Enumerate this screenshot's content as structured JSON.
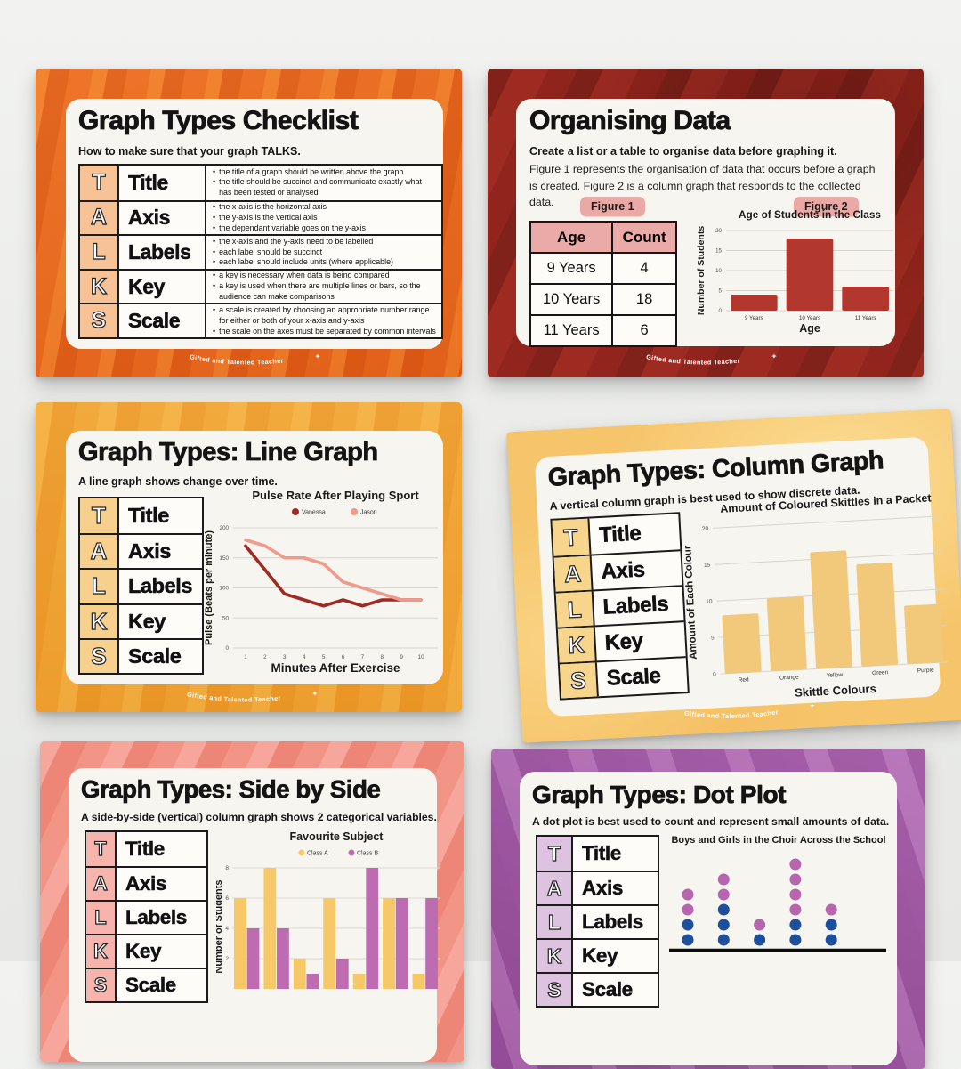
{
  "page": {
    "brand": "Gifted and  Talented Teacher",
    "background": "#eaebe9"
  },
  "talks_rows": [
    {
      "letter": "T",
      "label": "Title"
    },
    {
      "letter": "A",
      "label": "Axis"
    },
    {
      "letter": "L",
      "label": "Labels"
    },
    {
      "letter": "K",
      "label": "Key"
    },
    {
      "letter": "S",
      "label": "Scale"
    }
  ],
  "cards": {
    "checklist": {
      "title": "Graph Types Checklist",
      "subtitle": "How to make sure that your graph TALKS.",
      "bg": "#e8611a",
      "accent": "#f6c296",
      "rows": [
        {
          "letter": "T",
          "label": "Title",
          "bullets": [
            "the title of a graph should be written above the graph",
            "the title should be succinct and communicate exactly what has been tested or analysed"
          ]
        },
        {
          "letter": "A",
          "label": "Axis",
          "bullets": [
            "the x-axis is the horizontal axis",
            "the y-axis is the vertical axis",
            "the dependant variable goes on the y-axis"
          ]
        },
        {
          "letter": "L",
          "label": "Labels",
          "bullets": [
            "the x-axis and the y-axis need to be labelled",
            "each label should be succinct",
            "each label should include units (where applicable)"
          ]
        },
        {
          "letter": "K",
          "label": "Key",
          "bullets": [
            "a key is necessary when data is being compared",
            "a key is used when there are multiple lines or bars, so the audience can make comparisons"
          ]
        },
        {
          "letter": "S",
          "label": "Scale",
          "bullets": [
            "a scale is created by choosing an appropriate number range for either or both of your x-axis and y-axis",
            "the scale on the axes must be separated by common intervals"
          ]
        }
      ]
    },
    "organising": {
      "title": "Organising Data",
      "subtitle": "Create a list or a table to organise data before graphing it.",
      "body": "Figure 1 represents the organisation of data that occurs before a graph is created. Figure 2 is a column graph that responds to the collected data.",
      "figure1_label": "Figure 1",
      "figure2_label": "Figure 2",
      "bg": "#9d2b21",
      "badge_color": "#eaa9a5",
      "table": {
        "headers": [
          "Age",
          "Count"
        ],
        "rows": [
          [
            "9 Years",
            "4"
          ],
          [
            "10 Years",
            "18"
          ],
          [
            "11 Years",
            "6"
          ]
        ]
      }
    },
    "line": {
      "title": "Graph Types: Line Graph",
      "subtitle": "A line graph shows change over time.",
      "bg": "#efa02f",
      "accent": "#f8d08d"
    },
    "column": {
      "title": "Graph Types: Column Graph",
      "subtitle": "A vertical column graph is best used to show discrete data.",
      "bg": "#f6c56b",
      "accent": "#f8d58d"
    },
    "side": {
      "title": "Graph Types: Side by Side",
      "subtitle": "A side-by-side (vertical) column graph shows 2 categorical variables.",
      "bg": "#ef8f82",
      "accent": "#f6b4ac"
    },
    "dot": {
      "title": "Graph Types: Dot Plot",
      "subtitle": "A dot plot is best used to count and represent small amounts of data.",
      "bg": "#a463a7",
      "accent": "#ddc3e0"
    }
  },
  "chart_data": [
    {
      "card": "organising",
      "type": "bar",
      "title": "Age of Students in the Class",
      "categories": [
        "9 Years",
        "10 Years",
        "11 Years"
      ],
      "values": [
        4,
        18,
        6
      ],
      "xlabel": "Age",
      "ylabel": "Number of Students",
      "ylim": [
        0,
        20
      ],
      "yticks": [
        0,
        5,
        10,
        15,
        20
      ],
      "bar_color": "#b2372e",
      "grid": true
    },
    {
      "card": "line",
      "type": "line",
      "title": "Pulse Rate After Playing Sport",
      "x": [
        1,
        2,
        3,
        4,
        5,
        6,
        7,
        8,
        9,
        10
      ],
      "series": [
        {
          "name": "Vanessa",
          "color": "#9e2b23",
          "values": [
            170,
            130,
            90,
            80,
            70,
            80,
            70,
            80,
            80,
            80
          ]
        },
        {
          "name": "Jason",
          "color": "#f09a8c",
          "values": [
            180,
            170,
            150,
            150,
            140,
            110,
            100,
            90,
            80,
            80
          ]
        }
      ],
      "xlabel": "Minutes After Exercise",
      "ylabel": "Pulse (Beats per minute)",
      "ylim": [
        0,
        200
      ],
      "yticks": [
        0,
        50,
        100,
        150,
        200
      ],
      "legend_position": "top",
      "grid": true
    },
    {
      "card": "column",
      "type": "bar",
      "title": "Amount of Coloured Skittles in a Packet",
      "categories": [
        "Red",
        "Orange",
        "Yellow",
        "Green",
        "Purple"
      ],
      "values": [
        8,
        10,
        16,
        14,
        8
      ],
      "xlabel": "Skittle Colours",
      "ylabel": "Amount of Each Colour",
      "ylim": [
        0,
        20
      ],
      "yticks": [
        0,
        5,
        10,
        15,
        20
      ],
      "bar_color": "#f2c87a",
      "grid": true
    },
    {
      "card": "side",
      "type": "bar",
      "title": "Favourite Subject",
      "categories": [
        "",
        "",
        "",
        "",
        "",
        "",
        ""
      ],
      "series": [
        {
          "name": "Class A",
          "color": "#f7c867",
          "values": [
            6,
            8,
            2,
            6,
            1,
            6,
            1
          ]
        },
        {
          "name": "Class B",
          "color": "#bd6cb2",
          "values": [
            4,
            4,
            1,
            2,
            8,
            6,
            6
          ]
        }
      ],
      "ylabel": "Number of Students",
      "ylim": [
        0,
        9
      ],
      "yticks": [
        2,
        4,
        6,
        8
      ],
      "legend_position": "top",
      "grid": true,
      "cropped_bottom": true
    },
    {
      "card": "dot",
      "type": "dot",
      "title": "Boys and Girls in the Choir Across the School",
      "columns": [
        {
          "blue": 2,
          "purple": 2
        },
        {
          "blue": 3,
          "purple": 2
        },
        {
          "blue": 1,
          "purple": 1
        },
        {
          "blue": 2,
          "purple": 4
        },
        {
          "blue": 2,
          "purple": 1
        }
      ],
      "colors": {
        "blue": "#1e4f9c",
        "purple": "#b765ae"
      },
      "cropped_bottom": true
    }
  ]
}
